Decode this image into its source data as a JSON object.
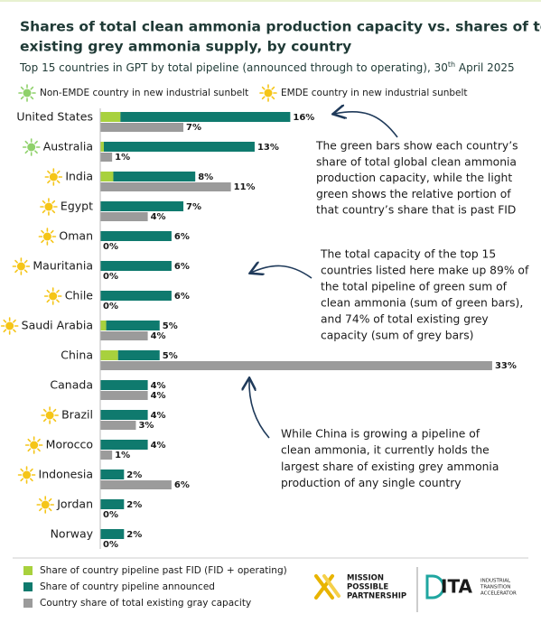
{
  "chart_data": {
    "type": "stacked_hbar",
    "title_lines": [
      "Shares of total clean ammonia production capacity vs. shares of total",
      "existing grey ammonia supply, by country"
    ],
    "subtitle": {
      "before": "Top 15 countries in GPT by total pipeline (announced through to operating), 30",
      "sup": "th",
      "after": " April 2025"
    },
    "icon_legend": [
      {
        "label": "Non-EMDE country in new industrial sunbelt",
        "color": "#8fd16b"
      },
      {
        "label": "EMDE country in new industrial sunbelt",
        "color": "#f5c518"
      }
    ],
    "categories": [
      "United States",
      "Australia",
      "India",
      "Egypt",
      "Oman",
      "Mauritania",
      "Chile",
      "Saudi Arabia",
      "China",
      "Canada",
      "Brazil",
      "Morocco",
      "Indonesia",
      "Jordan",
      "Norway"
    ],
    "icons": [
      null,
      0,
      1,
      1,
      1,
      1,
      1,
      1,
      null,
      null,
      1,
      1,
      1,
      1,
      null
    ],
    "series": [
      {
        "name": "Share of country pipeline past FID (FID + operating)",
        "color": "#a8d13d",
        "values": [
          1.7,
          0.3,
          1.1,
          0,
          0,
          0,
          0,
          0.5,
          1.5,
          0,
          0,
          0,
          0,
          0,
          0
        ]
      },
      {
        "name": "Share of country pipeline announced",
        "color": "#0f7a6e",
        "values": [
          14.3,
          12.7,
          6.9,
          7,
          6,
          6,
          6,
          4.5,
          3.5,
          4,
          4,
          4,
          2,
          2,
          2
        ]
      },
      {
        "name": "Country share of total existing gray capacity",
        "color": "#9b9b9b",
        "values": [
          7,
          1,
          11,
          4,
          0,
          0,
          0,
          4,
          33,
          4,
          3,
          1,
          6,
          0,
          0
        ],
        "value_labels": [
          "7%",
          "1%",
          "11%",
          "4%",
          "0%",
          "0%",
          "0%",
          "4%",
          "33%",
          "4%",
          "3%",
          "1%",
          "6%",
          "0%",
          "0%"
        ]
      }
    ],
    "pipeline_totals": {
      "values": [
        16,
        13,
        8,
        7,
        6,
        6,
        6,
        5,
        5,
        4,
        4,
        4,
        2,
        2,
        2
      ],
      "value_labels": [
        "16%",
        "13%",
        "8%",
        "7%",
        "6%",
        "6%",
        "6%",
        "5%",
        "5%",
        "4%",
        "4%",
        "4%",
        "2%",
        "2%",
        "2%"
      ]
    },
    "annotations": [
      {
        "lines": [
          "The green bars show each country’s",
          "share of total global clean ammonia",
          "production capacity, while the light",
          "green shows the relative portion of",
          "that country’s share that is past FID"
        ]
      },
      {
        "lines": [
          "The total capacity of the top 15",
          "countries listed here make up 89% of",
          "the total pipeline of green sum of",
          "clean ammonia (sum of green bars),",
          "and 74% of total existing grey",
          "capacity (sum of grey bars)"
        ]
      },
      {
        "lines": [
          "While China is growing a pipeline of",
          "clean ammonia, it currently holds the",
          "largest share of existing grey ammonia",
          "production of any single country"
        ]
      }
    ],
    "logos": {
      "mpp": [
        "MISSION",
        "POSSIBLE",
        "PARTNERSHIP"
      ],
      "ita": "ITA",
      "ita_full": [
        "INDUSTRIAL",
        "TRANSITION",
        "ACCELERATOR"
      ]
    }
  }
}
